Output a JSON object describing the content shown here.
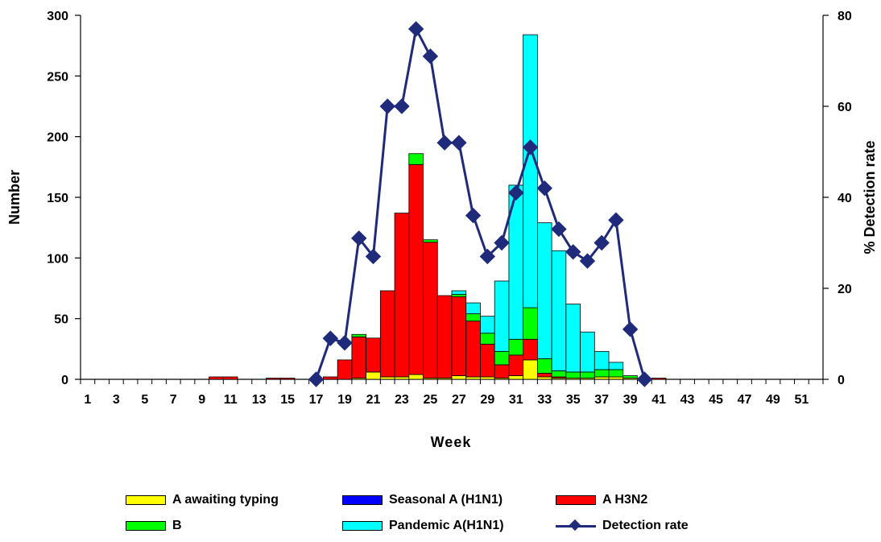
{
  "chart_data": {
    "type": "bar",
    "stacked": true,
    "xlabel": "Week",
    "ylabel": "Number",
    "y2label": "% Detection rate",
    "ylim": [
      0,
      300
    ],
    "y2lim": [
      0,
      80
    ],
    "yticks": [
      0,
      50,
      100,
      150,
      200,
      250,
      300
    ],
    "y2ticks": [
      0,
      20,
      40,
      60,
      80
    ],
    "x_tick_labels": [
      "1",
      "3",
      "5",
      "7",
      "9",
      "11",
      "13",
      "15",
      "17",
      "19",
      "21",
      "23",
      "25",
      "27",
      "29",
      "31",
      "33",
      "35",
      "37",
      "39",
      "41",
      "43",
      "45",
      "47",
      "49",
      "51"
    ],
    "weeks": [
      1,
      2,
      3,
      4,
      5,
      6,
      7,
      8,
      9,
      10,
      11,
      12,
      13,
      14,
      15,
      16,
      17,
      18,
      19,
      20,
      21,
      22,
      23,
      24,
      25,
      26,
      27,
      28,
      29,
      30,
      31,
      32,
      33,
      34,
      35,
      36,
      37,
      38,
      39,
      40,
      41,
      42,
      43,
      44,
      45,
      46,
      47,
      48,
      49,
      50,
      51,
      52
    ],
    "series": [
      {
        "name": "A awaiting typing",
        "color": "#ffff00",
        "values": [
          0,
          0,
          0,
          0,
          0,
          0,
          0,
          0,
          0,
          0,
          0,
          0,
          0,
          0,
          0,
          0,
          0,
          0,
          0,
          1,
          6,
          2,
          2,
          4,
          1,
          1,
          3,
          2,
          2,
          1,
          3,
          16,
          2,
          1,
          1,
          1,
          2,
          2,
          1,
          0,
          0,
          0,
          0,
          0,
          0,
          0,
          0,
          0,
          0,
          0,
          0,
          0
        ]
      },
      {
        "name": "Seasonal A (H1N1)",
        "color": "#0000ff",
        "values": [
          0,
          0,
          0,
          0,
          0,
          0,
          0,
          0,
          0,
          0,
          0,
          0,
          0,
          0,
          0,
          0,
          0,
          0,
          0,
          0,
          0,
          0,
          0,
          0,
          0,
          0,
          0,
          0,
          0,
          0,
          0,
          0,
          0,
          0,
          0,
          0,
          0,
          0,
          0,
          0,
          0,
          0,
          0,
          0,
          0,
          0,
          0,
          0,
          0,
          0,
          0,
          0
        ]
      },
      {
        "name": "A H3N2",
        "color": "#ff0000",
        "values": [
          0,
          0,
          0,
          0,
          0,
          0,
          0,
          0,
          0,
          2,
          2,
          0,
          0,
          1,
          1,
          0,
          0,
          2,
          16,
          34,
          28,
          71,
          135,
          173,
          112,
          68,
          65,
          46,
          27,
          11,
          17,
          17,
          3,
          1,
          0,
          0,
          0,
          0,
          0,
          0,
          1,
          0,
          0,
          0,
          0,
          0,
          0,
          0,
          0,
          0,
          0,
          0
        ]
      },
      {
        "name": "B",
        "color": "#00ff00",
        "values": [
          0,
          0,
          0,
          0,
          0,
          0,
          0,
          0,
          0,
          0,
          0,
          0,
          0,
          0,
          0,
          0,
          0,
          0,
          0,
          2,
          0,
          0,
          0,
          9,
          2,
          0,
          2,
          6,
          9,
          11,
          13,
          26,
          12,
          5,
          5,
          5,
          6,
          6,
          2,
          0,
          0,
          0,
          0,
          0,
          0,
          0,
          0,
          0,
          0,
          0,
          0,
          0
        ]
      },
      {
        "name": "Pandemic A(H1N1)",
        "color": "#00ffff",
        "values": [
          0,
          0,
          0,
          0,
          0,
          0,
          0,
          0,
          0,
          0,
          0,
          0,
          0,
          0,
          0,
          0,
          0,
          0,
          0,
          0,
          0,
          0,
          0,
          0,
          0,
          0,
          3,
          9,
          14,
          58,
          127,
          225,
          112,
          99,
          56,
          33,
          15,
          6,
          0,
          0,
          0,
          0,
          0,
          0,
          0,
          0,
          0,
          0,
          0,
          0,
          0,
          0
        ]
      }
    ],
    "line_series": {
      "name": "Detection rate",
      "color": "#1f2a7a",
      "axis": "y2",
      "x": [
        17,
        18,
        19,
        20,
        21,
        22,
        23,
        24,
        25,
        26,
        27,
        28,
        29,
        30,
        31,
        32,
        33,
        34,
        35,
        36,
        37,
        38,
        39,
        40
      ],
      "values": [
        0,
        9,
        8,
        31,
        27,
        60,
        60,
        77,
        71,
        52,
        52,
        36,
        27,
        30,
        41,
        51,
        42,
        33,
        28,
        26,
        30,
        35,
        11,
        0
      ]
    },
    "legend_position": "bottom"
  },
  "legend": {
    "items": [
      {
        "label": "A awaiting typing"
      },
      {
        "label": "Seasonal A (H1N1)"
      },
      {
        "label": "A H3N2"
      },
      {
        "label": "B"
      },
      {
        "label": "Pandemic A(H1N1)"
      },
      {
        "label": "Detection rate"
      }
    ]
  }
}
